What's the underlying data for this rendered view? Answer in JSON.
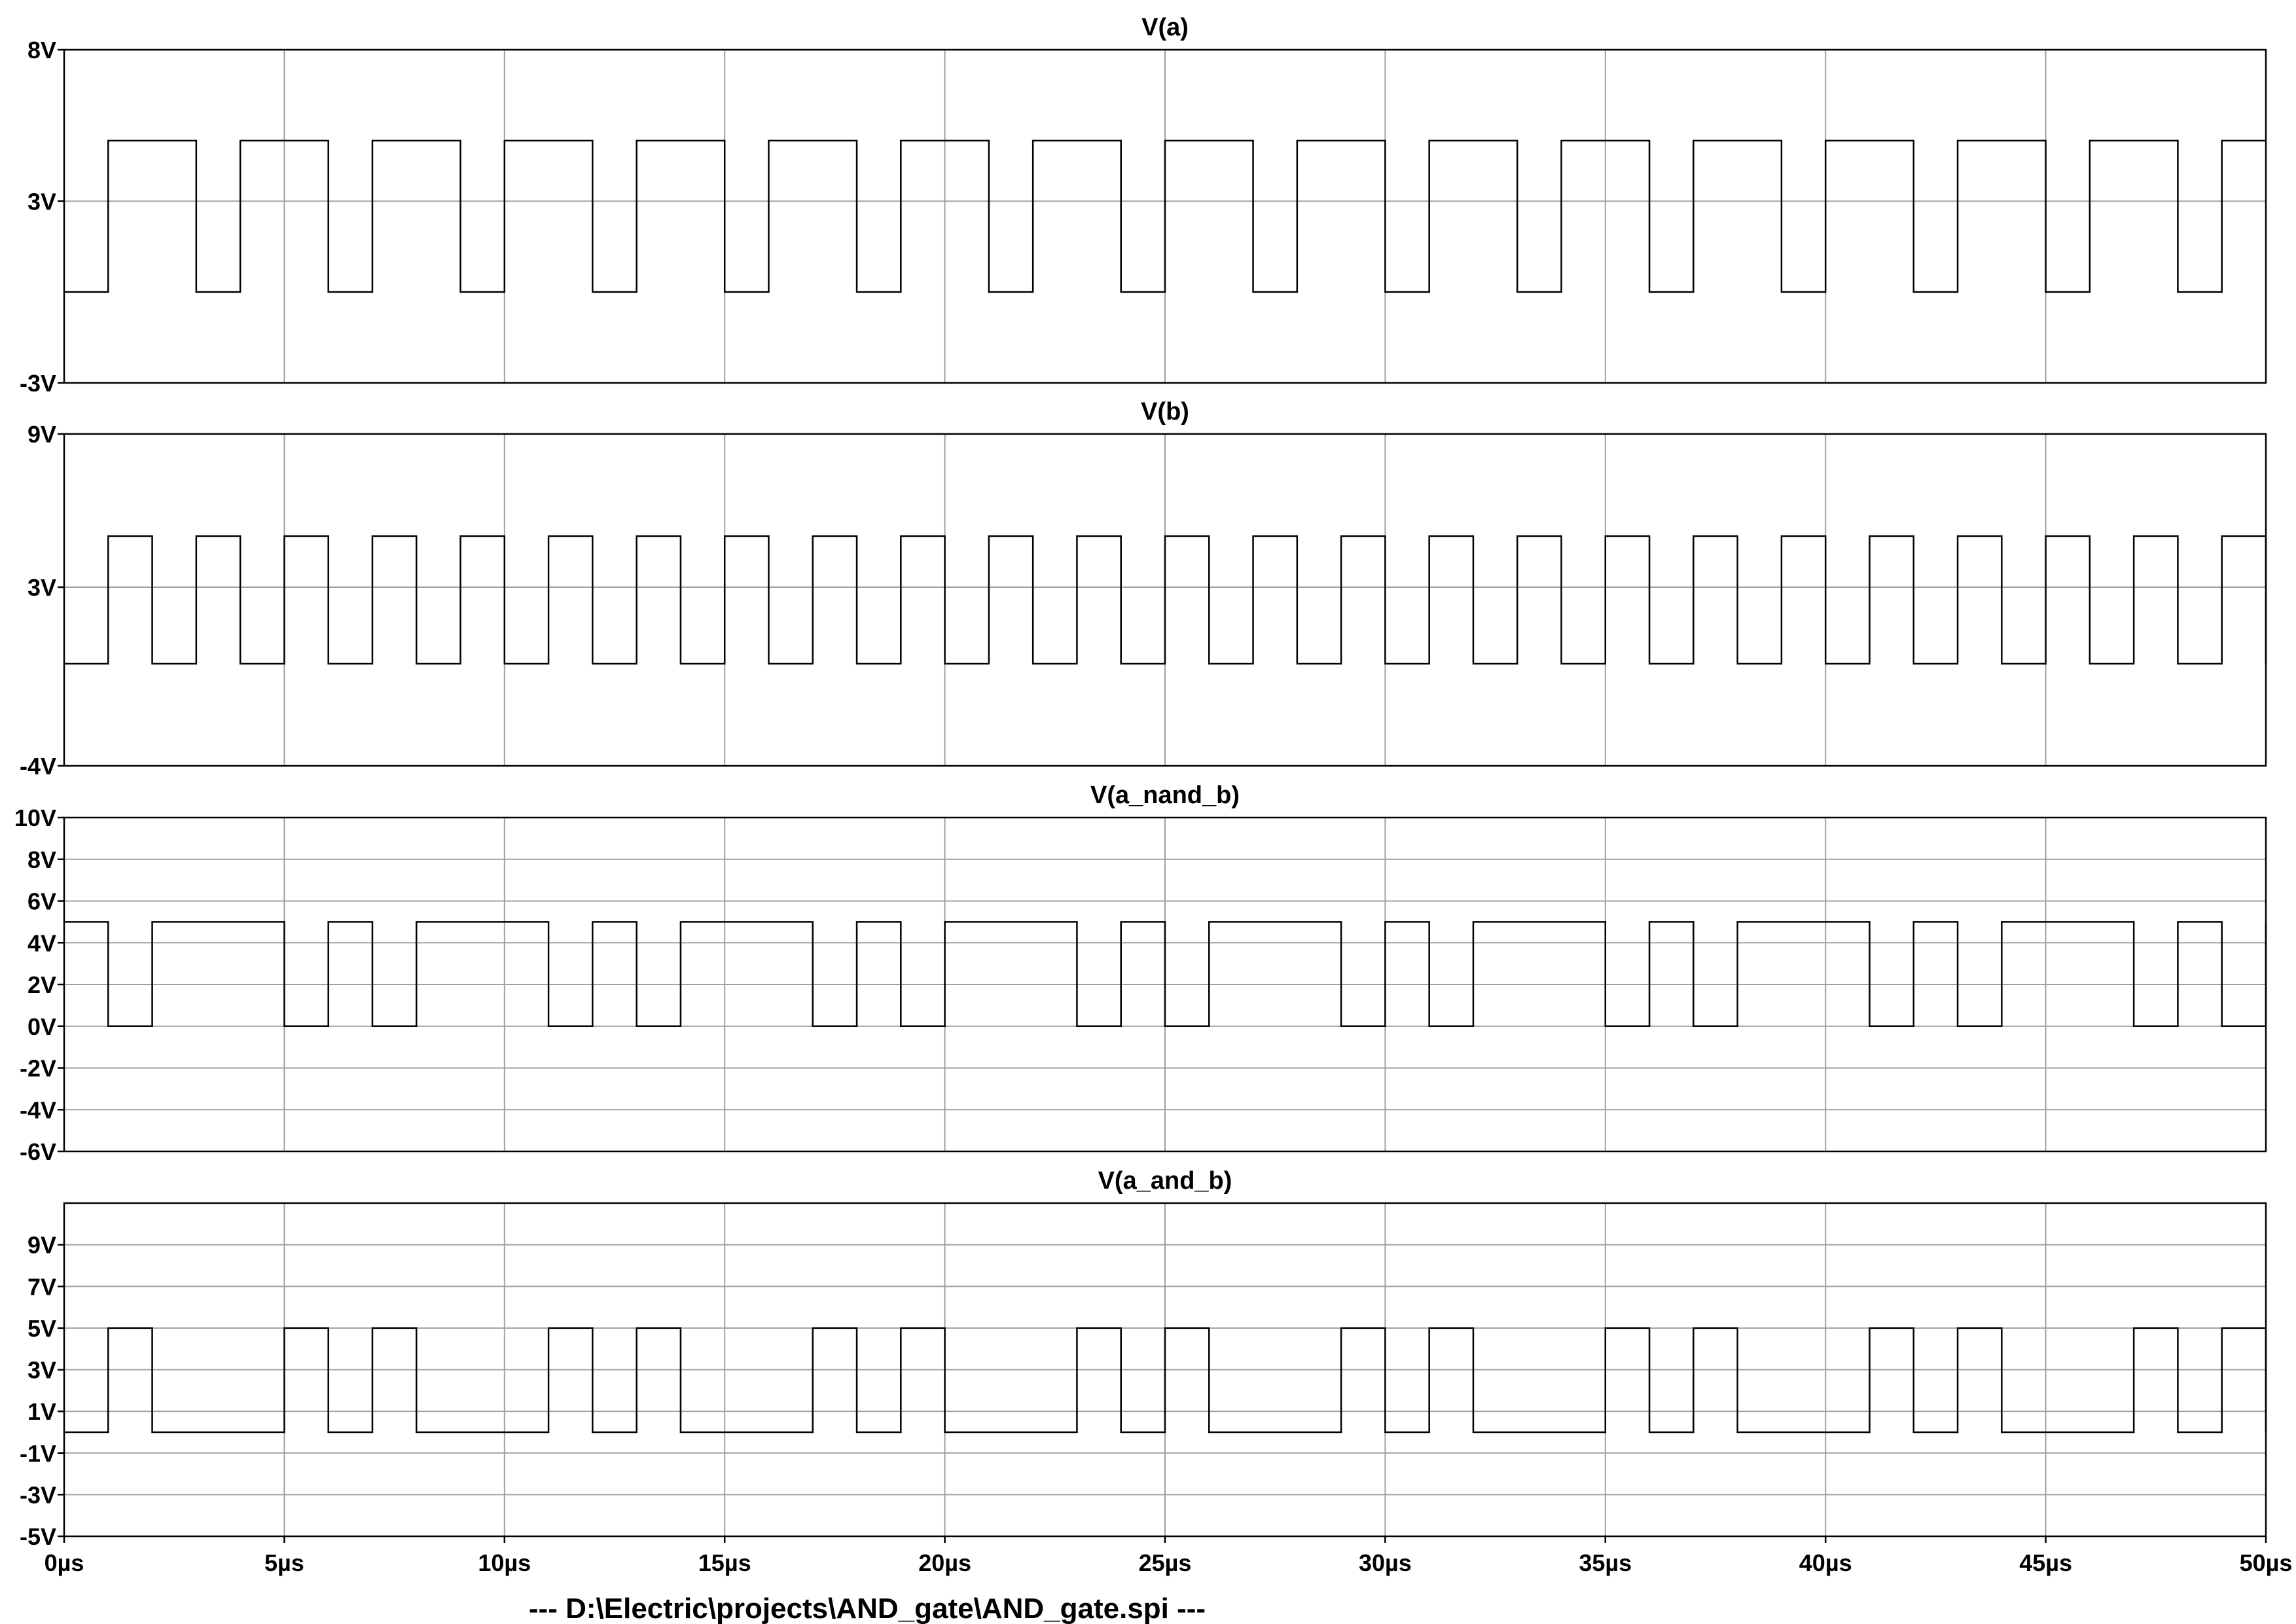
{
  "footer": "---  D:\\Electric\\projects\\AND_gate\\AND_gate.spi  ---",
  "chart_data": [
    {
      "type": "line",
      "title": "V(a)",
      "xlim": [
        0,
        50
      ],
      "ylim": [
        -3,
        8
      ],
      "x_ticks": [
        "0µs",
        "5µs",
        "10µs",
        "15µs",
        "20µs",
        "25µs",
        "30µs",
        "35µs",
        "40µs",
        "45µs",
        "50µs"
      ],
      "y_ticks": [
        {
          "value": 8,
          "label": "8V"
        },
        {
          "value": 3,
          "label": "3V"
        },
        {
          "value": -3,
          "label": "-3V"
        }
      ],
      "series": [
        {
          "period": 3,
          "high_start": 1,
          "high_end": 3,
          "low": 0,
          "high": 5,
          "x_start": 0,
          "x_end": 50
        }
      ]
    },
    {
      "type": "line",
      "title": "V(b)",
      "xlim": [
        0,
        50
      ],
      "ylim": [
        -4,
        9
      ],
      "x_ticks": [],
      "y_ticks": [
        {
          "value": 9,
          "label": "9V"
        },
        {
          "value": 3,
          "label": "3V"
        },
        {
          "value": -4,
          "label": "-4V"
        }
      ],
      "series": [
        {
          "period": 2,
          "high_start": 1,
          "high_end": 2,
          "low": 0,
          "high": 5,
          "x_start": 0,
          "x_end": 50
        }
      ]
    },
    {
      "type": "line",
      "title": "V(a_nand_b)",
      "xlim": [
        0,
        50
      ],
      "ylim": [
        -6,
        10
      ],
      "x_ticks": [],
      "y_ticks": [
        {
          "value": 10,
          "label": "10V"
        },
        {
          "value": 8,
          "label": "8V"
        },
        {
          "value": 6,
          "label": "6V"
        },
        {
          "value": 4,
          "label": "4V"
        },
        {
          "value": 2,
          "label": "2V"
        },
        {
          "value": 0,
          "label": "0V"
        },
        {
          "value": -2,
          "label": "-2V"
        },
        {
          "value": -4,
          "label": "-4V"
        },
        {
          "value": -6,
          "label": "-6V"
        }
      ],
      "series": [
        {
          "period": 6,
          "low_intervals": [
            [
              1,
              2
            ],
            [
              5,
              6
            ],
            [
              7,
              8
            ]
          ],
          "low": 0,
          "high": 5,
          "x_start": 0,
          "x_end": 50
        }
      ]
    },
    {
      "type": "line",
      "title": "V(a_and_b)",
      "xlim": [
        0,
        50
      ],
      "ylim": [
        -5,
        11
      ],
      "x_ticks": [],
      "y_ticks": [
        {
          "value": 9,
          "label": "9V"
        },
        {
          "value": 7,
          "label": "7V"
        },
        {
          "value": 5,
          "label": "5V"
        },
        {
          "value": 3,
          "label": "3V"
        },
        {
          "value": 1,
          "label": "1V"
        },
        {
          "value": -1,
          "label": "-1V"
        },
        {
          "value": -3,
          "label": "-3V"
        },
        {
          "value": -5,
          "label": "-5V"
        }
      ],
      "series": [
        {
          "period": 6,
          "high_intervals": [
            [
              1,
              2
            ],
            [
              5,
              6
            ],
            [
              7,
              8
            ]
          ],
          "low": 0,
          "high": 5,
          "x_start": 0,
          "x_end": 50
        }
      ]
    }
  ]
}
